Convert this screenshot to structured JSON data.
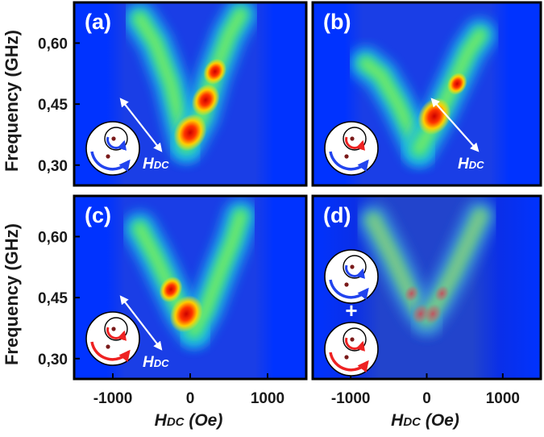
{
  "chart_data": [
    {
      "type": "heatmap",
      "panel_label": "(a)",
      "xlabel": "",
      "ylabel": "Frequency (GHz)",
      "xlim": [
        -1500,
        1500
      ],
      "ylim": [
        0.25,
        0.7
      ],
      "y_ticks": [
        "0,30",
        "0,45",
        "0,60"
      ],
      "x_ticks": [],
      "field_label": "H",
      "field_sub": "DC",
      "spectrum": {
        "left_branch": [
          [
            -650,
            0.66
          ],
          [
            -450,
            0.6
          ],
          [
            -250,
            0.5
          ],
          [
            -120,
            0.4
          ],
          [
            -50,
            0.35
          ]
        ],
        "right_branch": [
          [
            -50,
            0.35
          ],
          [
            150,
            0.42
          ],
          [
            300,
            0.52
          ],
          [
            500,
            0.62
          ],
          [
            650,
            0.67
          ]
        ],
        "hot_spots": [
          [
            0,
            0.38,
            1.0
          ],
          [
            200,
            0.46,
            0.85
          ],
          [
            320,
            0.53,
            0.7
          ]
        ]
      }
    },
    {
      "type": "heatmap",
      "panel_label": "(b)",
      "xlabel": "",
      "ylabel": "",
      "xlim": [
        -1500,
        1500
      ],
      "ylim": [
        0.25,
        0.7
      ],
      "y_ticks": [],
      "x_ticks": [],
      "field_label": "H",
      "field_sub": "DC",
      "spectrum": {
        "left_branch": [
          [
            -800,
            0.55
          ],
          [
            -600,
            0.52
          ],
          [
            -380,
            0.45
          ],
          [
            -200,
            0.38
          ],
          [
            -100,
            0.34
          ]
        ],
        "right_branch": [
          [
            -100,
            0.34
          ],
          [
            150,
            0.42
          ],
          [
            350,
            0.5
          ],
          [
            550,
            0.58
          ],
          [
            700,
            0.62
          ]
        ],
        "hot_spots": [
          [
            100,
            0.42,
            1.0
          ],
          [
            400,
            0.5,
            0.6
          ]
        ]
      }
    },
    {
      "type": "heatmap",
      "panel_label": "(c)",
      "xlabel": "HDC (Oe)",
      "ylabel": "Frequency (GHz)",
      "xlim": [
        -1500,
        1500
      ],
      "ylim": [
        0.25,
        0.7
      ],
      "y_ticks": [
        "0,30",
        "0,45",
        "0,60"
      ],
      "x_ticks": [
        "-1000",
        "0",
        "1000"
      ],
      "field_label": "H",
      "field_sub": "DC",
      "spectrum": {
        "left_branch": [
          [
            -650,
            0.62
          ],
          [
            -450,
            0.55
          ],
          [
            -250,
            0.47
          ],
          [
            -100,
            0.41
          ],
          [
            50,
            0.37
          ]
        ],
        "right_branch": [
          [
            50,
            0.37
          ],
          [
            200,
            0.42
          ],
          [
            400,
            0.52
          ],
          [
            550,
            0.59
          ],
          [
            650,
            0.65
          ]
        ],
        "hot_spots": [
          [
            -50,
            0.41,
            1.0
          ],
          [
            -250,
            0.47,
            0.7
          ]
        ]
      }
    },
    {
      "type": "heatmap",
      "panel_label": "(d)",
      "xlabel": "HDC (Oe)",
      "ylabel": "",
      "xlim": [
        -1500,
        1500
      ],
      "ylim": [
        0.25,
        0.7
      ],
      "y_ticks": [],
      "x_ticks": [
        "-1000",
        "0",
        "1000"
      ],
      "field_label": "H",
      "field_sub": "DC",
      "plus_sign": "+",
      "spectrum": {
        "left_branch": [
          [
            -700,
            0.64
          ],
          [
            -450,
            0.55
          ],
          [
            -250,
            0.47
          ],
          [
            -100,
            0.42
          ],
          [
            0,
            0.4
          ]
        ],
        "right_branch": [
          [
            0,
            0.4
          ],
          [
            150,
            0.44
          ],
          [
            350,
            0.51
          ],
          [
            550,
            0.59
          ],
          [
            700,
            0.65
          ]
        ],
        "hot_spots": [
          [
            -80,
            0.41,
            0.55
          ],
          [
            80,
            0.41,
            0.55
          ],
          [
            -200,
            0.46,
            0.45
          ],
          [
            200,
            0.46,
            0.45
          ]
        ]
      }
    }
  ]
}
